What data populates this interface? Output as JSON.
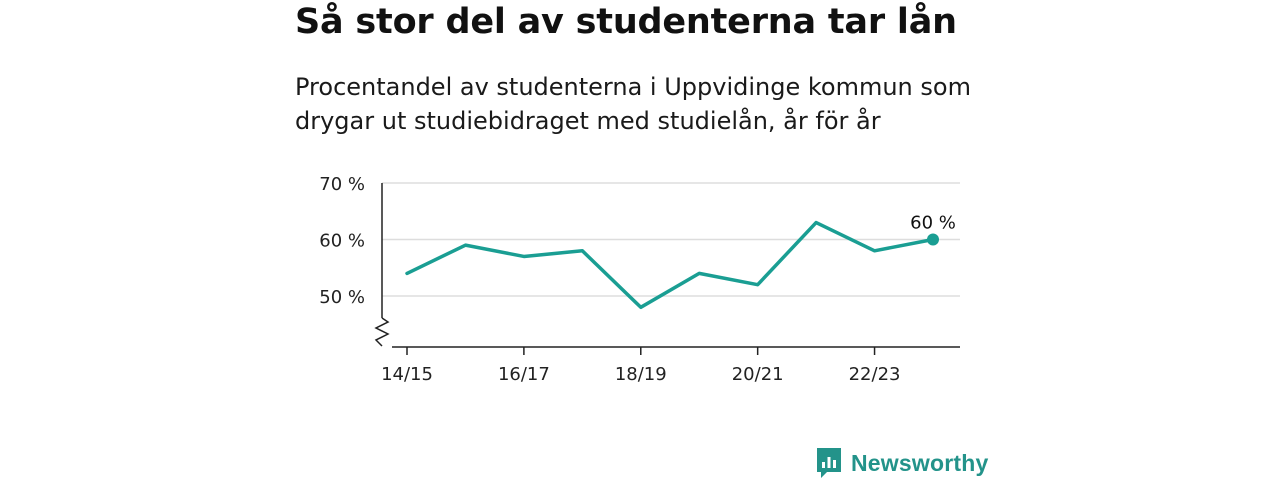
{
  "title": "Så stor del av studenterna tar lån",
  "subtitle": "Procentandel av studenterna i Uppvidinge kommun som drygar ut studiebidraget med studielån, år för år",
  "brand": {
    "name": "Newsworthy",
    "icon": "newsworthy-logo-icon"
  },
  "colors": {
    "line": "#1a9e93",
    "brand": "#23938a",
    "grid": "#dddddd",
    "axis": "#222222"
  },
  "chart_data": {
    "type": "line",
    "x": [
      "14/15",
      "15/16",
      "16/17",
      "17/18",
      "18/19",
      "19/20",
      "20/21",
      "21/22",
      "22/23",
      "23/24"
    ],
    "series": [
      {
        "values": [
          54,
          59,
          57,
          58,
          48,
          54,
          52,
          63,
          58,
          60
        ]
      }
    ],
    "x_tick_labels": [
      "14/15",
      "16/17",
      "18/19",
      "20/21",
      "22/23"
    ],
    "y_ticks": [
      {
        "value": 50,
        "label": "50 %"
      },
      {
        "value": 60,
        "label": "60 %"
      },
      {
        "value": 70,
        "label": "70 %"
      }
    ],
    "ylim": [
      41,
      70
    ],
    "grid": true,
    "axis_break": true,
    "end_label": "60 %"
  }
}
